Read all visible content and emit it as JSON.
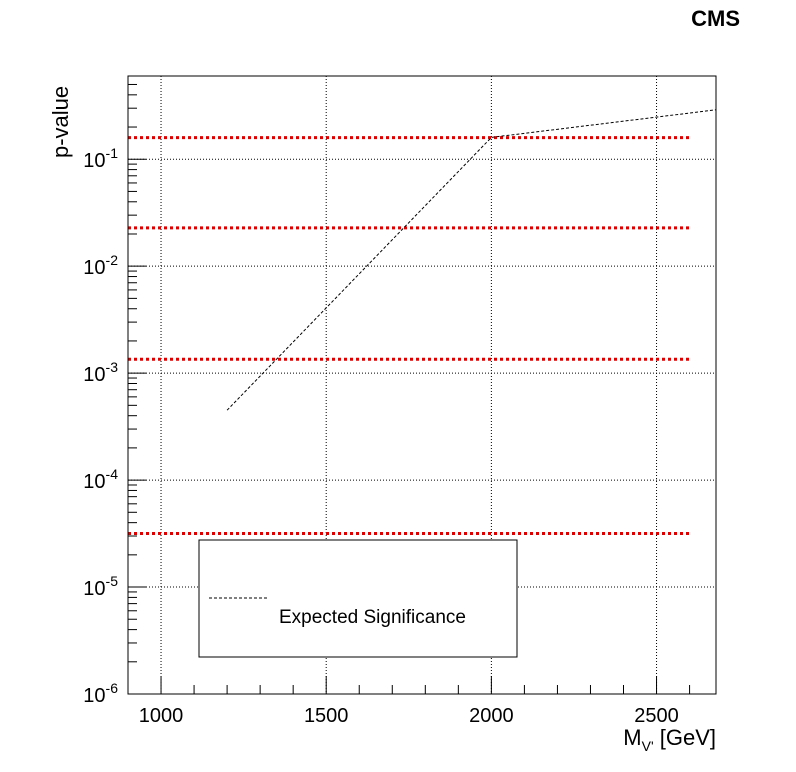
{
  "chart_data": {
    "type": "line",
    "experiment_label": "CMS",
    "ylabel": "p-value",
    "xlabel_main": "M",
    "xlabel_sub": "V'",
    "xlabel_unit": " [GeV]",
    "xlim": [
      900,
      2680
    ],
    "ylim": [
      1e-06,
      0.6
    ],
    "y_scale": "log",
    "x_ticks": [
      1000,
      1500,
      2000,
      2500
    ],
    "y_ticks": [
      {
        "value": 0.1,
        "base": "10",
        "exp": "-1"
      },
      {
        "value": 0.01,
        "base": "10",
        "exp": "-2"
      },
      {
        "value": 0.001,
        "base": "10",
        "exp": "-3"
      },
      {
        "value": 0.0001,
        "base": "10",
        "exp": "-4"
      },
      {
        "value": 1e-05,
        "base": "10",
        "exp": "-5"
      },
      {
        "value": 1e-06,
        "base": "10",
        "exp": "-6"
      }
    ],
    "grid": true,
    "series": [
      {
        "name": "Expected Significance",
        "style": "dashed",
        "color": "#000000",
        "x": [
          1200,
          2000,
          2680
        ],
        "y": [
          0.00045,
          0.16,
          0.29
        ]
      }
    ],
    "reference_lines": {
      "color": "#dd0000",
      "x_range": [
        900,
        2600
      ],
      "y": [
        0.159,
        0.0228,
        0.00135,
        3.17e-05
      ]
    },
    "legend": {
      "position": "bottom-left",
      "entries": [
        "Expected Significance"
      ]
    }
  }
}
